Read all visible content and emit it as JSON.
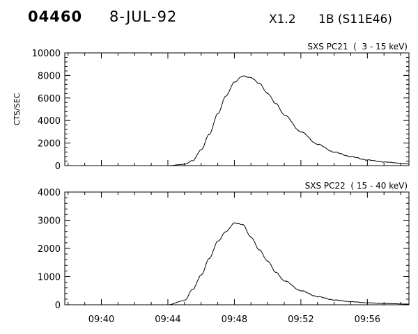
{
  "header": {
    "flare_id": "04460",
    "date": "8-JUL-92",
    "goes_class": "X1.2",
    "region": "1B (S11E46)"
  },
  "chart_data": [
    {
      "type": "line",
      "title": "SXS PC21  (  3 - 15 keV)",
      "ylabel": "CTS/SEC",
      "xlabel": "",
      "ylim": [
        0,
        10000
      ],
      "yticks": [
        0,
        2000,
        4000,
        6000,
        8000,
        10000
      ],
      "ytick_labels": [
        "0",
        "2000",
        "4000",
        "6000",
        "8000",
        "10000"
      ],
      "xlim_minutes": [
        37.8,
        58.5
      ],
      "xticks_minutes": [
        40,
        44,
        48,
        52,
        56
      ],
      "grid": false,
      "series": [
        {
          "x": [
            "09:37.8",
            "09:40",
            "09:44",
            "09:45",
            "09:45.5",
            "09:46",
            "09:46.5",
            "09:47",
            "09:47.5",
            "09:48",
            "09:48.5",
            "09:49",
            "09:49.5",
            "09:50",
            "09:50.5",
            "09:51",
            "09:52",
            "09:53",
            "09:54",
            "09:55",
            "09:56",
            "09:57",
            "09:58.5"
          ],
          "x_minutes": [
            37.8,
            40,
            44,
            45,
            45.5,
            46,
            46.5,
            47,
            47.5,
            48,
            48.5,
            49,
            49.5,
            50,
            50.5,
            51,
            52,
            53,
            54,
            55,
            56,
            57,
            58.5
          ],
          "y": [
            0,
            0,
            0,
            120,
            450,
            1400,
            2800,
            4600,
            6200,
            7400,
            7950,
            7800,
            7300,
            6400,
            5500,
            4500,
            3000,
            1900,
            1200,
            800,
            500,
            320,
            150
          ]
        }
      ]
    },
    {
      "type": "line",
      "title": "SXS PC22  ( 15 - 40 keV)",
      "ylabel": "",
      "xlabel": "",
      "ylim": [
        0,
        4000
      ],
      "yticks": [
        0,
        1000,
        2000,
        3000,
        4000
      ],
      "ytick_labels": [
        "0",
        "1000",
        "2000",
        "3000",
        "4000"
      ],
      "xlim_minutes": [
        37.8,
        58.5
      ],
      "xticks_minutes": [
        40,
        44,
        48,
        52,
        56
      ],
      "xtick_labels": [
        "09:40",
        "09:44",
        "09:48",
        "09:52",
        "09:56"
      ],
      "grid": false,
      "series": [
        {
          "x": [
            "09:37.8",
            "09:40",
            "09:44",
            "09:45",
            "09:45.5",
            "09:46",
            "09:46.5",
            "09:47",
            "09:47.5",
            "09:48",
            "09:48.5",
            "09:49",
            "09:49.5",
            "09:50",
            "09:50.5",
            "09:51",
            "09:52",
            "09:53",
            "09:54",
            "09:55",
            "09:56",
            "09:57",
            "09:58.5"
          ],
          "x_minutes": [
            37.8,
            40,
            44,
            45,
            45.5,
            46,
            46.5,
            47,
            47.5,
            48,
            48.5,
            49,
            49.5,
            50,
            50.5,
            51,
            52,
            53,
            54,
            55,
            56,
            57,
            58.5
          ],
          "y": [
            0,
            0,
            0,
            150,
            550,
            1050,
            1650,
            2250,
            2600,
            2900,
            2850,
            2400,
            1950,
            1550,
            1150,
            850,
            500,
            290,
            170,
            110,
            70,
            45,
            25
          ]
        }
      ]
    }
  ]
}
